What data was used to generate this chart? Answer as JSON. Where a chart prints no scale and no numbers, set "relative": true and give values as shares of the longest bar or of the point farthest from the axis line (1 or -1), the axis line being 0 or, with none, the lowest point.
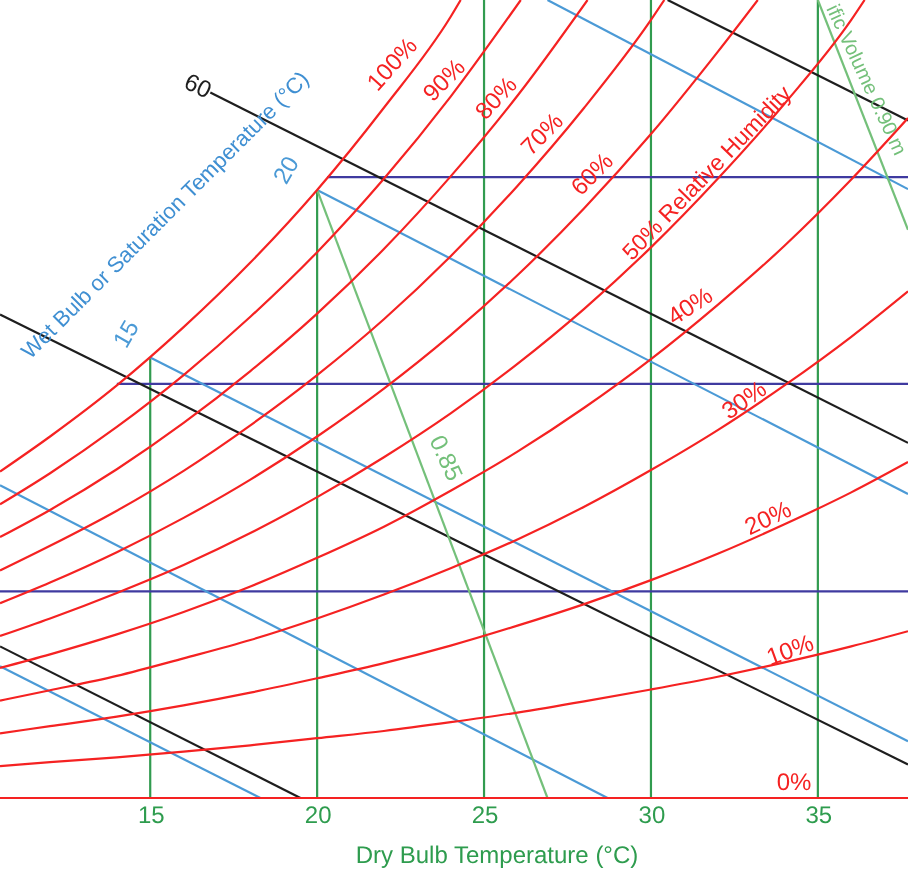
{
  "chart_data": {
    "type": "line",
    "relative": true,
    "xlabel": "Dry Bulb Temperature (°C)",
    "xlim": [
      10.5,
      37.7
    ],
    "xticks": [
      15,
      20,
      25,
      30,
      35
    ],
    "annotations": [
      "Wet Bulb or Saturation Temperature (°C)"
    ],
    "series": [
      {
        "color": "#319b4f",
        "x": [
          15,
          15
        ],
        "values": [
          0,
          0.552
        ]
      },
      {
        "color": "#319b4f",
        "x": [
          20,
          20
        ],
        "values": [
          0,
          0.762
        ]
      },
      {
        "color": "#319b4f",
        "x": [
          25,
          25
        ],
        "values": [
          0,
          1
        ]
      },
      {
        "color": "#319b4f",
        "x": [
          30,
          30
        ],
        "values": [
          0,
          1
        ]
      },
      {
        "color": "#319b4f",
        "x": [
          35,
          35
        ],
        "values": [
          0,
          1
        ]
      },
      {
        "color": "#3f3aa0",
        "x": [
          20.3,
          37.7
        ],
        "values": [
          0.778,
          0.778
        ]
      },
      {
        "color": "#3f3aa0",
        "x": [
          14.0,
          37.7
        ],
        "values": [
          0.519,
          0.519
        ]
      },
      {
        "color": "#3f3aa0",
        "x": [
          10.5,
          37.7
        ],
        "values": [
          0.259,
          0.259
        ]
      },
      {
        "color": "#4b9ad6",
        "x": [
          10.5,
          18.3
        ],
        "values": [
          0.165,
          0
        ]
      },
      {
        "color": "#4b9ad6",
        "x": [
          10.5,
          28.7
        ],
        "values": [
          0.392,
          0
        ]
      },
      {
        "name": "15",
        "color": "#4b9ad6",
        "x": [
          15,
          37.7
        ],
        "values": [
          0.552,
          0.071
        ]
      },
      {
        "name": "20",
        "color": "#4b9ad6",
        "x": [
          20,
          37.7
        ],
        "values": [
          0.762,
          0.381
        ]
      },
      {
        "color": "#4b9ad6",
        "x": [
          26.9,
          37.7
        ],
        "values": [
          1,
          0.763
        ]
      },
      {
        "color": "#1e1e1e",
        "x": [
          10.5,
          19.5
        ],
        "values": [
          0.19,
          0
        ]
      },
      {
        "color": "#1e1e1e",
        "x": [
          10.5,
          37.7
        ],
        "values": [
          0.606,
          0.042
        ]
      },
      {
        "name": "60",
        "color": "#1e1e1e",
        "x": [
          16.8,
          37.7
        ],
        "values": [
          0.884,
          0.445
        ]
      },
      {
        "color": "#1e1e1e",
        "x": [
          30.5,
          37.7
        ],
        "values": [
          1,
          0.849
        ]
      },
      {
        "name": "0.85",
        "color": "#74c07a",
        "x": [
          20,
          26.9
        ],
        "values": [
          0.762,
          0
        ]
      },
      {
        "name": "ific Volume 0.90 m",
        "color": "#74c07a",
        "x": [
          35.0,
          37.7
        ],
        "values": [
          1,
          0.712
        ]
      },
      {
        "name": "0%",
        "color": "#f52222",
        "x": [
          10.5,
          37.7
        ],
        "values": [
          0,
          0
        ]
      },
      {
        "name": "10%",
        "color": "#f52222",
        "x": [
          10.5,
          12,
          14,
          16,
          18,
          20,
          22,
          24,
          26,
          28,
          30,
          32,
          34,
          36,
          37.7
        ],
        "values": [
          0.04,
          0.045,
          0.051,
          0.058,
          0.066,
          0.075,
          0.084,
          0.095,
          0.107,
          0.121,
          0.136,
          0.152,
          0.17,
          0.19,
          0.209
        ]
      },
      {
        "name": "20%",
        "color": "#f52222",
        "x": [
          10.5,
          12,
          14,
          16,
          18,
          20,
          22,
          24,
          26,
          28,
          30,
          32,
          34,
          36,
          37.7
        ],
        "values": [
          0.081,
          0.09,
          0.102,
          0.116,
          0.132,
          0.15,
          0.169,
          0.191,
          0.216,
          0.243,
          0.273,
          0.306,
          0.343,
          0.383,
          0.421
        ]
      },
      {
        "name": "30%",
        "color": "#f52222",
        "x": [
          10.5,
          12,
          14,
          16,
          18,
          20,
          22,
          24,
          26,
          28,
          30,
          32,
          34,
          36,
          37.7
        ],
        "values": [
          0.122,
          0.135,
          0.153,
          0.175,
          0.198,
          0.225,
          0.255,
          0.288,
          0.324,
          0.365,
          0.411,
          0.461,
          0.517,
          0.578,
          0.635
        ]
      },
      {
        "name": "40%",
        "color": "#f52222",
        "x": [
          10.5,
          12,
          14,
          16,
          18,
          20,
          22,
          24,
          26,
          28,
          30,
          32,
          34,
          36,
          37.7
        ],
        "values": [
          0.163,
          0.18,
          0.205,
          0.233,
          0.265,
          0.301,
          0.34,
          0.385,
          0.434,
          0.489,
          0.55,
          0.618,
          0.692,
          0.775,
          0.852
        ]
      },
      {
        "name": "50% Relative Humidity",
        "color": "#f52222",
        "x": [
          10.5,
          12,
          14,
          16,
          18,
          20,
          22,
          24,
          26,
          28,
          30,
          32,
          34,
          36,
          36.4
        ],
        "values": [
          0.203,
          0.225,
          0.257,
          0.292,
          0.332,
          0.377,
          0.427,
          0.482,
          0.544,
          0.613,
          0.69,
          0.776,
          0.87,
          0.975,
          1
        ]
      },
      {
        "name": "60%",
        "color": "#f52222",
        "x": [
          10.5,
          12,
          14,
          16,
          18,
          20,
          22,
          24,
          26,
          28,
          30,
          32,
          33.2
        ],
        "values": [
          0.244,
          0.27,
          0.308,
          0.351,
          0.399,
          0.453,
          0.513,
          0.58,
          0.655,
          0.739,
          0.832,
          0.935,
          1
        ]
      },
      {
        "name": "70%",
        "color": "#f52222",
        "x": [
          10.5,
          12,
          14,
          16,
          18,
          20,
          22,
          24,
          26,
          28,
          30,
          30.4
        ],
        "values": [
          0.285,
          0.316,
          0.36,
          0.41,
          0.467,
          0.53,
          0.6,
          0.679,
          0.767,
          0.865,
          0.975,
          1
        ]
      },
      {
        "name": "80%",
        "color": "#f52222",
        "x": [
          10.5,
          12,
          14,
          16,
          18,
          20,
          22,
          24,
          26,
          28.1
        ],
        "values": [
          0.327,
          0.361,
          0.412,
          0.47,
          0.535,
          0.607,
          0.688,
          0.779,
          0.88,
          1
        ]
      },
      {
        "name": "90%",
        "color": "#f52222",
        "x": [
          10.5,
          12,
          14,
          16,
          18,
          20,
          22,
          24,
          26.1
        ],
        "values": [
          0.368,
          0.407,
          0.465,
          0.53,
          0.603,
          0.684,
          0.776,
          0.879,
          1
        ]
      },
      {
        "name": "100%",
        "color": "#f52222",
        "x": [
          10.5,
          12,
          14,
          16,
          18,
          20,
          22,
          24,
          24.3
        ],
        "values": [
          0.409,
          0.453,
          0.517,
          0.59,
          0.671,
          0.762,
          0.865,
          0.979,
          1
        ]
      }
    ]
  }
}
